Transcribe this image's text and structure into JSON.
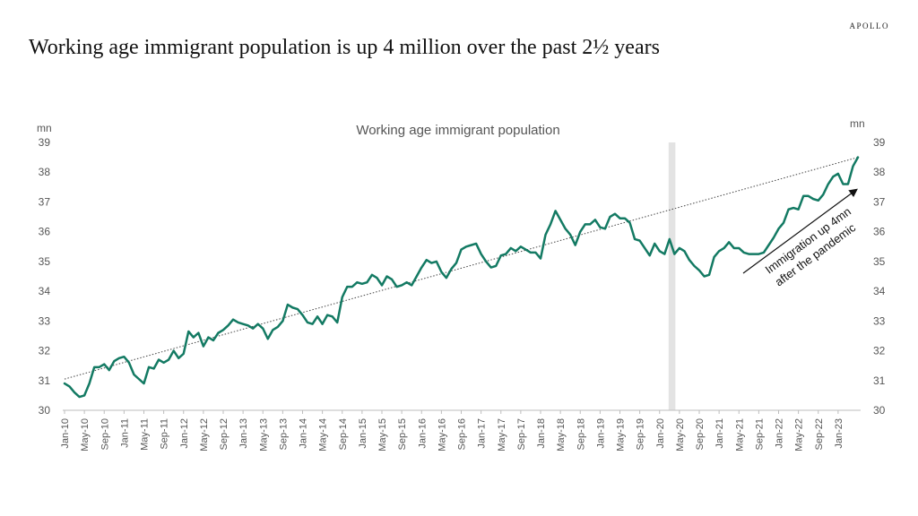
{
  "brand": "APOLLO",
  "title": "Working age immigrant population is up 4 million over the past 2½ years",
  "chart_data": {
    "type": "line",
    "title": "Working age immigrant population",
    "left_unit": "mn",
    "right_unit": "mn",
    "ylim": [
      30,
      39
    ],
    "yticks": [
      "30",
      "31",
      "32",
      "33",
      "34",
      "35",
      "36",
      "37",
      "38",
      "39"
    ],
    "x_start": "Jan-10",
    "xtick_labels": [
      "Jan-10",
      "May-10",
      "Sep-10",
      "Jan-11",
      "May-11",
      "Sep-11",
      "Jan-12",
      "May-12",
      "Sep-12",
      "Jan-13",
      "May-13",
      "Sep-13",
      "Jan-14",
      "May-14",
      "Sep-14",
      "Jan-15",
      "May-15",
      "Sep-15",
      "Jan-16",
      "May-16",
      "Sep-16",
      "Jan-17",
      "May-17",
      "Sep-17",
      "Jan-18",
      "May-18",
      "Sep-18",
      "Jan-19",
      "May-19",
      "Sep-19",
      "Jan-20",
      "May-20",
      "Sep-20",
      "Jan-21",
      "May-21",
      "Sep-21",
      "Jan-22",
      "May-22",
      "Sep-22",
      "Jan-23"
    ],
    "series": [
      {
        "color": "#137a63",
        "values": [
          30.9,
          30.8,
          30.6,
          30.45,
          30.5,
          30.9,
          31.45,
          31.45,
          31.55,
          31.35,
          31.65,
          31.75,
          31.8,
          31.6,
          31.2,
          31.05,
          30.9,
          31.45,
          31.4,
          31.7,
          31.6,
          31.7,
          32.0,
          31.75,
          31.9,
          32.65,
          32.45,
          32.6,
          32.15,
          32.45,
          32.35,
          32.6,
          32.7,
          32.85,
          33.05,
          32.95,
          32.9,
          32.85,
          32.75,
          32.9,
          32.75,
          32.4,
          32.7,
          32.8,
          33.0,
          33.55,
          33.45,
          33.4,
          33.2,
          32.95,
          32.9,
          33.15,
          32.9,
          33.2,
          33.15,
          32.95,
          33.8,
          34.15,
          34.15,
          34.3,
          34.25,
          34.3,
          34.55,
          34.45,
          34.2,
          34.5,
          34.4,
          34.15,
          34.2,
          34.3,
          34.2,
          34.5,
          34.8,
          35.05,
          34.95,
          35.0,
          34.65,
          34.45,
          34.75,
          34.95,
          35.4,
          35.5,
          35.55,
          35.6,
          35.25,
          35.0,
          34.8,
          34.85,
          35.2,
          35.25,
          35.45,
          35.35,
          35.5,
          35.4,
          35.3,
          35.3,
          35.1,
          35.9,
          36.25,
          36.7,
          36.4,
          36.1,
          35.9,
          35.55,
          36.0,
          36.25,
          36.25,
          36.4,
          36.15,
          36.1,
          36.5,
          36.6,
          36.45,
          36.45,
          36.3,
          35.75,
          35.7,
          35.45,
          35.2,
          35.6,
          35.35,
          35.25,
          35.75,
          35.25,
          35.45,
          35.35,
          35.05,
          34.85,
          34.7,
          34.5,
          34.55,
          35.15,
          35.35,
          35.45,
          35.65,
          35.45,
          35.45,
          35.3,
          35.25,
          35.25,
          35.25,
          35.3,
          35.55,
          35.8,
          36.1,
          36.3,
          36.75,
          36.8,
          36.75,
          37.2,
          37.2,
          37.1,
          37.05,
          37.25,
          37.6,
          37.85,
          37.95,
          37.6,
          37.6,
          38.2,
          38.5
        ]
      }
    ],
    "trend": {
      "start": 31.05,
      "end": 38.5,
      "style": "dotted"
    },
    "shaded_period": {
      "from": "Mar-20",
      "to": "Apr-20"
    },
    "annotation": {
      "line1": "Immigration up 4mn",
      "line2": "after the pandemic"
    },
    "grid": false
  }
}
